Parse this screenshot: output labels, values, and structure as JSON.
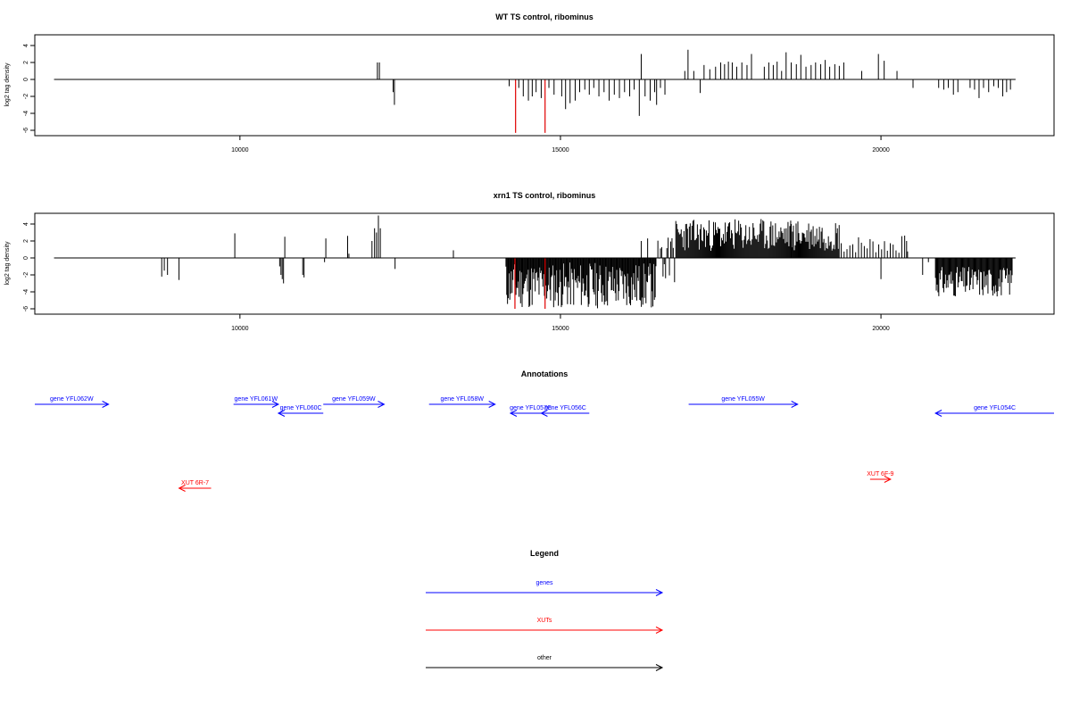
{
  "chart_data": [
    {
      "type": "bar",
      "title": "WT TS control, ribominus",
      "xlabel": "",
      "ylabel": "log2 tag density",
      "xlim": [
        6800,
        22700
      ],
      "ylim": [
        -6,
        4.5
      ],
      "x_ticks": [
        {
          "value": 10000,
          "label": "10000"
        },
        {
          "value": 15000,
          "label": "15000"
        },
        {
          "value": 20000,
          "label": "20000"
        }
      ],
      "y_ticks": [
        {
          "value": -6,
          "label": "-6"
        },
        {
          "value": -4,
          "label": "-4"
        },
        {
          "value": -2,
          "label": "-2"
        },
        {
          "value": 0,
          "label": "0"
        },
        {
          "value": 2,
          "label": "2"
        },
        {
          "value": 4,
          "label": "4"
        }
      ],
      "baseline": {
        "from": 7100,
        "to": 22100
      },
      "bar_colors": {
        "default": "#000000",
        "highlight": "#e00000"
      },
      "bars": [
        {
          "x": 12140,
          "y": 2.0,
          "c": "#555555"
        },
        {
          "x": 12160,
          "y": 2.0,
          "c": "#555555"
        },
        {
          "x": 12180,
          "y": 2.0,
          "c": "#555555"
        },
        {
          "x": 12390,
          "y": -1.5
        },
        {
          "x": 12410,
          "y": -3.0
        },
        {
          "x": 14200,
          "y": -0.8
        },
        {
          "x": 14300,
          "y": -6.3,
          "c": "#e00000"
        },
        {
          "x": 14350,
          "y": -1.0
        },
        {
          "x": 14420,
          "y": -2.0
        },
        {
          "x": 14500,
          "y": -2.5
        },
        {
          "x": 14560,
          "y": -2.0
        },
        {
          "x": 14620,
          "y": -1.5
        },
        {
          "x": 14700,
          "y": -2.2
        },
        {
          "x": 14760,
          "y": -6.3,
          "c": "#e00000"
        },
        {
          "x": 14820,
          "y": -1.0
        },
        {
          "x": 14900,
          "y": -1.8
        },
        {
          "x": 15020,
          "y": -2.0
        },
        {
          "x": 15080,
          "y": -3.5
        },
        {
          "x": 15150,
          "y": -2.8
        },
        {
          "x": 15230,
          "y": -2.5
        },
        {
          "x": 15300,
          "y": -1.5
        },
        {
          "x": 15380,
          "y": -1.2
        },
        {
          "x": 15450,
          "y": -1.8
        },
        {
          "x": 15520,
          "y": -1.0
        },
        {
          "x": 15600,
          "y": -2.0
        },
        {
          "x": 15680,
          "y": -1.5
        },
        {
          "x": 15760,
          "y": -2.5
        },
        {
          "x": 15840,
          "y": -1.8
        },
        {
          "x": 15920,
          "y": -2.2
        },
        {
          "x": 16000,
          "y": -1.5
        },
        {
          "x": 16080,
          "y": -2.0
        },
        {
          "x": 16150,
          "y": -1.2
        },
        {
          "x": 16230,
          "y": -4.3
        },
        {
          "x": 16260,
          "y": 3.0
        },
        {
          "x": 16320,
          "y": -2.0
        },
        {
          "x": 16400,
          "y": -2.5
        },
        {
          "x": 16470,
          "y": -1.5
        },
        {
          "x": 16500,
          "y": -3.0
        },
        {
          "x": 16560,
          "y": -1.0
        },
        {
          "x": 16630,
          "y": -1.8
        },
        {
          "x": 16940,
          "y": 1.0
        },
        {
          "x": 16990,
          "y": 3.5
        },
        {
          "x": 17080,
          "y": 1.0
        },
        {
          "x": 17180,
          "y": -1.6
        },
        {
          "x": 17240,
          "y": 1.7
        },
        {
          "x": 17330,
          "y": 1.2
        },
        {
          "x": 17420,
          "y": 1.5
        },
        {
          "x": 17500,
          "y": 2.0
        },
        {
          "x": 17560,
          "y": 1.8
        },
        {
          "x": 17620,
          "y": 2.1
        },
        {
          "x": 17680,
          "y": 2.0
        },
        {
          "x": 17750,
          "y": 1.5
        },
        {
          "x": 17830,
          "y": 2.0
        },
        {
          "x": 17910,
          "y": 1.7
        },
        {
          "x": 17980,
          "y": 3.0
        },
        {
          "x": 18180,
          "y": 1.5
        },
        {
          "x": 18250,
          "y": 2.0
        },
        {
          "x": 18320,
          "y": 1.7
        },
        {
          "x": 18380,
          "y": 2.1
        },
        {
          "x": 18450,
          "y": 1.0
        },
        {
          "x": 18520,
          "y": 3.2
        },
        {
          "x": 18600,
          "y": 2.0
        },
        {
          "x": 18680,
          "y": 1.8
        },
        {
          "x": 18750,
          "y": 2.9
        },
        {
          "x": 18830,
          "y": 1.5
        },
        {
          "x": 18910,
          "y": 1.7
        },
        {
          "x": 18980,
          "y": 2.0
        },
        {
          "x": 19060,
          "y": 1.8
        },
        {
          "x": 19130,
          "y": 2.3
        },
        {
          "x": 19200,
          "y": 1.5
        },
        {
          "x": 19280,
          "y": 1.8
        },
        {
          "x": 19350,
          "y": 1.6
        },
        {
          "x": 19420,
          "y": 2.0
        },
        {
          "x": 19700,
          "y": 1.0
        },
        {
          "x": 19960,
          "y": 3.0
        },
        {
          "x": 20050,
          "y": 2.2
        },
        {
          "x": 20250,
          "y": 1.0
        },
        {
          "x": 20500,
          "y": -1.0
        },
        {
          "x": 20900,
          "y": -1.0
        },
        {
          "x": 20980,
          "y": -1.2
        },
        {
          "x": 21050,
          "y": -1.0
        },
        {
          "x": 21130,
          "y": -1.8
        },
        {
          "x": 21200,
          "y": -1.5
        },
        {
          "x": 21390,
          "y": -1.0
        },
        {
          "x": 21460,
          "y": -1.2
        },
        {
          "x": 21530,
          "y": -2.2
        },
        {
          "x": 21600,
          "y": -1.0
        },
        {
          "x": 21680,
          "y": -1.5
        },
        {
          "x": 21760,
          "y": -0.8
        },
        {
          "x": 21830,
          "y": -1.0
        },
        {
          "x": 21900,
          "y": -2.0
        },
        {
          "x": 21960,
          "y": -1.5
        },
        {
          "x": 22020,
          "y": -1.2
        }
      ]
    },
    {
      "type": "bar",
      "title": "xrn1 TS control, ribominus",
      "xlabel": "",
      "ylabel": "log2 tag density",
      "xlim": [
        6800,
        22700
      ],
      "ylim": [
        -6,
        4.5
      ],
      "x_ticks": [
        {
          "value": 10000,
          "label": "10000"
        },
        {
          "value": 15000,
          "label": "15000"
        },
        {
          "value": 20000,
          "label": "20000"
        }
      ],
      "y_ticks": [
        {
          "value": -6,
          "label": "-6"
        },
        {
          "value": -4,
          "label": "-4"
        },
        {
          "value": -2,
          "label": "-2"
        },
        {
          "value": 0,
          "label": "0"
        },
        {
          "value": 2,
          "label": "2"
        },
        {
          "value": 4,
          "label": "4"
        }
      ],
      "baseline": {
        "from": 7100,
        "to": 22100
      },
      "bar_colors": {
        "default": "#000000",
        "highlight": "#e00000"
      },
      "bars": [
        {
          "x": 8780,
          "y": -2.2
        },
        {
          "x": 8820,
          "y": -1.5
        },
        {
          "x": 8870,
          "y": -2.0
        },
        {
          "x": 9050,
          "y": -2.6
        },
        {
          "x": 9920,
          "y": 2.9
        },
        {
          "x": 10620,
          "y": -1.0
        },
        {
          "x": 10640,
          "y": -2.0
        },
        {
          "x": 10660,
          "y": -2.5
        },
        {
          "x": 10680,
          "y": -3.0
        },
        {
          "x": 10700,
          "y": 2.5
        },
        {
          "x": 10980,
          "y": -2.0
        },
        {
          "x": 11000,
          "y": -2.3
        },
        {
          "x": 11320,
          "y": -0.5
        },
        {
          "x": 11340,
          "y": 2.3
        },
        {
          "x": 11680,
          "y": 2.6
        },
        {
          "x": 11700,
          "y": 0.5
        },
        {
          "x": 12060,
          "y": 2.0
        },
        {
          "x": 12100,
          "y": 3.5
        },
        {
          "x": 12130,
          "y": 3.0
        },
        {
          "x": 12160,
          "y": 5.0
        },
        {
          "x": 12190,
          "y": 3.5
        },
        {
          "x": 12420,
          "y": -1.3
        },
        {
          "x": 13330,
          "y": 0.9
        },
        {
          "x": 16260,
          "y": 2.0
        },
        {
          "x": 16360,
          "y": 2.3
        },
        {
          "x": 18600,
          "y": 4.0
        },
        {
          "x": 19560,
          "y": 1.5
        },
        {
          "x": 20000,
          "y": -2.5
        },
        {
          "x": 20400,
          "y": 2.0
        },
        {
          "x": 20650,
          "y": -2.0
        },
        {
          "x": 20740,
          "y": -0.5
        },
        {
          "x": 14290,
          "y": -6.0,
          "c": "#e00000"
        },
        {
          "x": 14760,
          "y": -6.0,
          "c": "#e00000"
        }
      ],
      "dense_regions": [
        {
          "from": 14150,
          "to": 16500,
          "min": -6,
          "max": -0.5,
          "step": 12,
          "seed": 11
        },
        {
          "from": 16520,
          "to": 16780,
          "min": -3.5,
          "max": 2.5,
          "step": 20,
          "seed": 5
        },
        {
          "from": 16800,
          "to": 19350,
          "min": 0.8,
          "max": 4.6,
          "step": 14,
          "seed": 23
        },
        {
          "from": 19380,
          "to": 20450,
          "min": 0.5,
          "max": 2.7,
          "step": 45,
          "seed": 7
        },
        {
          "from": 20850,
          "to": 22050,
          "min": -4.6,
          "max": -1.0,
          "step": 13,
          "seed": 31
        }
      ]
    }
  ],
  "annotations": {
    "title": "Annotations",
    "features": [
      {
        "label": "gene YFL062W",
        "type": "gene",
        "strand": "+",
        "start": 6800,
        "end": 7950,
        "row": 0
      },
      {
        "label": "gene YFL061W",
        "type": "gene",
        "strand": "+",
        "start": 9900,
        "end": 10600,
        "row": 0
      },
      {
        "label": "gene YFL060C",
        "type": "gene",
        "strand": "-",
        "start": 10600,
        "end": 11300,
        "row": 1
      },
      {
        "label": "gene YFL059W",
        "type": "gene",
        "strand": "+",
        "start": 11300,
        "end": 12250,
        "row": 0
      },
      {
        "label": "gene YFL058W",
        "type": "gene",
        "strand": "+",
        "start": 12950,
        "end": 13980,
        "row": 0
      },
      {
        "label": "gene YFL057C",
        "type": "gene",
        "strand": "-",
        "start": 14220,
        "end": 14850,
        "row": 1
      },
      {
        "label": "gene YFL056C",
        "type": "gene",
        "strand": "-",
        "start": 14700,
        "end": 15450,
        "row": 1
      },
      {
        "label": "gene YFL055W",
        "type": "gene",
        "strand": "+",
        "start": 17000,
        "end": 18700,
        "row": 0
      },
      {
        "label": "gene YFL054C",
        "type": "gene",
        "strand": "-",
        "start": 20850,
        "end": 22700,
        "row": 1
      },
      {
        "label": "XUT 6R-7",
        "type": "XUT",
        "strand": "-",
        "start": 9050,
        "end": 9550,
        "row": 4
      },
      {
        "label": "XUT 6F-9",
        "type": "XUT",
        "strand": "+",
        "start": 19830,
        "end": 20150,
        "row": 3
      }
    ]
  },
  "legend": {
    "title": "Legend",
    "items": [
      {
        "label": "genes",
        "color": "#0000ff"
      },
      {
        "label": "XUTs",
        "color": "#ff0000"
      },
      {
        "label": "other",
        "color": "#000000"
      }
    ]
  },
  "colors": {
    "gene": "#0000ff",
    "XUT": "#ff0000",
    "other": "#000000",
    "axis": "#000000"
  }
}
